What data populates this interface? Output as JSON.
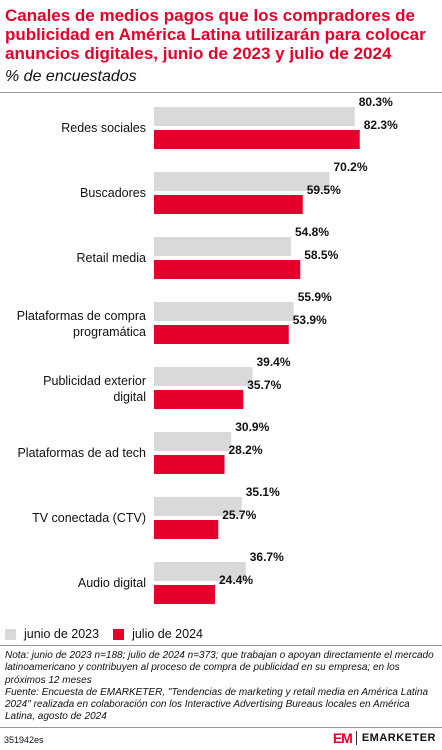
{
  "header": {
    "title": "Canales de medios pagos que los compradores de publicidad en América Latina utilizarán para colocar anuncios digitales, junio de 2023 y julio de 2024",
    "subtitle": "% de encuestados"
  },
  "chart_data": {
    "type": "bar",
    "orientation": "horizontal",
    "categories": [
      "Redes sociales",
      "Buscadores",
      "Retail media",
      "Plataformas de compra programática",
      "Publicidad exterior digital",
      "Plataformas de ad tech",
      "TV conectada (CTV)",
      "Audio digital"
    ],
    "series": [
      {
        "name": "junio de 2023",
        "color": "#d9d9d9",
        "values": [
          80.3,
          70.2,
          54.8,
          55.9,
          39.4,
          30.9,
          35.1,
          36.7
        ]
      },
      {
        "name": "julio de 2024",
        "color": "#e4002b",
        "values": [
          82.3,
          59.5,
          58.5,
          53.9,
          35.7,
          28.2,
          25.7,
          24.4
        ]
      }
    ],
    "value_suffix": "%",
    "xlim": [
      0,
      100
    ],
    "grid": false,
    "legend_position": "bottom-left"
  },
  "legend": {
    "items": [
      {
        "label": "junio de 2023",
        "color": "#d9d9d9"
      },
      {
        "label": "julio de 2024",
        "color": "#e4002b"
      }
    ]
  },
  "footer": {
    "note": "Nota: junio de 2023 n=188; julio de 2024 n=373; que trabajan o apoyan directamente el mercado latinoamericano y contribuyen al proceso de compra de publicidad en su empresa; en los próximos 12 meses",
    "source": "Fuente: Encuesta de EMARKETER, \"Tendencias de marketing y retail media en América Latina 2024\" realizada en colaboración con los Interactive Advertising Bureaus locales en América Latina, agosto de 2024",
    "chart_id": "351942es",
    "brand_mark": "EM",
    "brand_name": "EMARKETER"
  }
}
